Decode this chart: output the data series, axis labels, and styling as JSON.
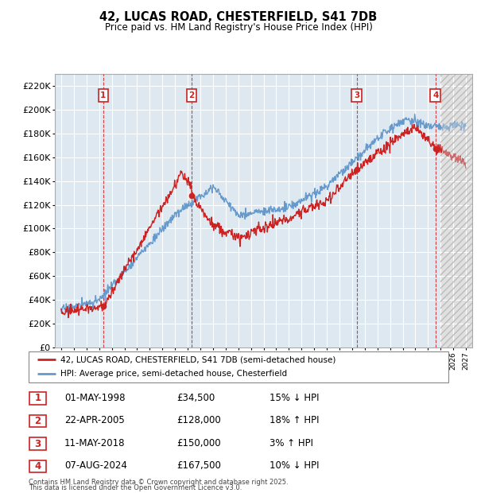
{
  "title": "42, LUCAS ROAD, CHESTERFIELD, S41 7DB",
  "subtitle": "Price paid vs. HM Land Registry's House Price Index (HPI)",
  "legend_line1": "42, LUCAS ROAD, CHESTERFIELD, S41 7DB (semi-detached house)",
  "legend_line2": "HPI: Average price, semi-detached house, Chesterfield",
  "footer1": "Contains HM Land Registry data © Crown copyright and database right 2025.",
  "footer2": "This data is licensed under the Open Government Licence v3.0.",
  "transactions": [
    {
      "num": 1,
      "date": "01-MAY-1998",
      "price": 34500,
      "pct": "15% ↓ HPI",
      "year": 1998.33
    },
    {
      "num": 2,
      "date": "22-APR-2005",
      "price": 128000,
      "pct": "18% ↑ HPI",
      "year": 2005.3
    },
    {
      "num": 3,
      "date": "11-MAY-2018",
      "price": 150000,
      "pct": "3% ↑ HPI",
      "year": 2018.36
    },
    {
      "num": 4,
      "date": "07-AUG-2024",
      "price": 167500,
      "pct": "10% ↓ HPI",
      "year": 2024.59
    }
  ],
  "hpi_color": "#6699cc",
  "price_color": "#cc2222",
  "vline_color": "#cc2222",
  "box_color": "#cc2222",
  "bg_color": "#dde8f0",
  "future_bg": "#e0e0e0",
  "grid_color": "#ffffff",
  "ylim": [
    0,
    230000
  ],
  "xlim_start": 1994.5,
  "xlim_end": 2027.5,
  "future_start": 2025.0,
  "table_data": [
    [
      1,
      "01-MAY-1998",
      "£34,500",
      "15% ↓ HPI"
    ],
    [
      2,
      "22-APR-2005",
      "£128,000",
      "18% ↑ HPI"
    ],
    [
      3,
      "11-MAY-2018",
      "£150,000",
      "3% ↑ HPI"
    ],
    [
      4,
      "07-AUG-2024",
      "£167,500",
      "10% ↓ HPI"
    ]
  ]
}
